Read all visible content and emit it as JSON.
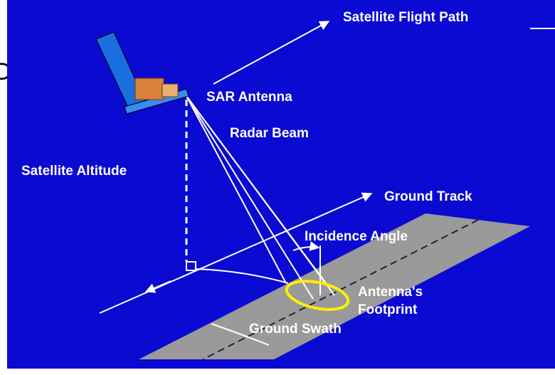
{
  "fragment": "D",
  "labels": {
    "flight_path": "Satellite Flight Path",
    "sar_antenna": "SAR Antenna",
    "radar_beam": "Radar Beam",
    "altitude": "Satellite Altitude",
    "ground_track": "Ground Track",
    "incidence_angle": "Incidence Angle",
    "footprint": [
      "Antenna's",
      "Footprint"
    ],
    "ground_swath": "Ground Swath"
  }
}
